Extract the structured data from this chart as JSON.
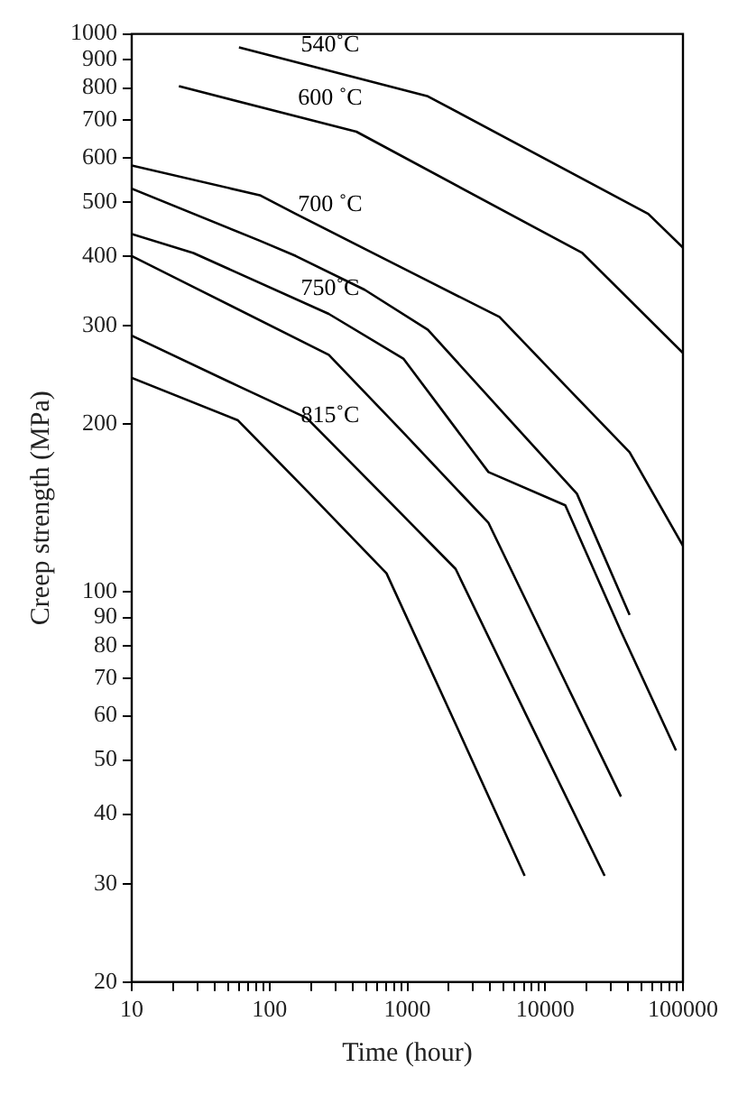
{
  "chart_data": {
    "type": "line",
    "xlabel": "Time (hour)",
    "ylabel": "Creep strength (MPa)",
    "log": "xy",
    "marker": "none",
    "xlim": [
      10,
      100000
    ],
    "ylim": [
      20,
      1000
    ],
    "xticks": [
      10,
      {
        "value": 20,
        "label": null
      },
      {
        "value": 30,
        "label": null
      },
      {
        "value": 40,
        "label": null
      },
      {
        "value": 50,
        "label": null
      },
      {
        "value": 60,
        "label": null
      },
      {
        "value": 70,
        "label": null
      },
      {
        "value": 80,
        "label": null
      },
      {
        "value": 90,
        "label": null
      },
      100,
      {
        "value": 200,
        "label": null
      },
      {
        "value": 300,
        "label": null
      },
      {
        "value": 400,
        "label": null
      },
      {
        "value": 500,
        "label": null
      },
      {
        "value": 600,
        "label": null
      },
      {
        "value": 700,
        "label": null
      },
      {
        "value": 800,
        "label": null
      },
      {
        "value": 900,
        "label": null
      },
      1000,
      {
        "value": 2000,
        "label": null
      },
      {
        "value": 3000,
        "label": null
      },
      {
        "value": 4000,
        "label": null
      },
      {
        "value": 5000,
        "label": null
      },
      {
        "value": 6000,
        "label": null
      },
      {
        "value": 7000,
        "label": null
      },
      {
        "value": 8000,
        "label": null
      },
      {
        "value": 9000,
        "label": null
      },
      10000,
      {
        "value": 20000,
        "label": null
      },
      {
        "value": 30000,
        "label": null
      },
      {
        "value": 40000,
        "label": null
      },
      {
        "value": 50000,
        "label": null
      },
      {
        "value": 60000,
        "label": null
      },
      {
        "value": 70000,
        "label": null
      },
      {
        "value": 80000,
        "label": null
      },
      {
        "value": 90000,
        "label": null
      },
      100000
    ],
    "yticks": [
      20,
      30,
      40,
      50,
      60,
      70,
      80,
      90,
      100,
      200,
      300,
      400,
      500,
      600,
      700,
      800,
      900,
      1000
    ],
    "series": [
      {
        "name": "540˚C",
        "color": "#000000",
        "x": [
          60,
          1410,
          56000,
          100000
        ],
        "values": [
          946,
          773,
          476,
          414
        ]
      },
      {
        "name": "600 ˚C",
        "color": "#000000",
        "x": [
          22,
          427,
          18600,
          100000
        ],
        "values": [
          806,
          668,
          405,
          268
        ]
      },
      {
        "name": "700 ˚C",
        "color": "#000000",
        "x": [
          10,
          85,
          155,
          490,
          1410,
          4660,
          17000,
          41000,
          100000
        ],
        "values": [
          581,
          514,
          476,
          412,
          361,
          311,
          223,
          178,
          121
        ]
      },
      {
        "color": "#000000",
        "x": [
          10,
          85,
          155,
          490,
          1410,
          4660,
          17000,
          41000
        ],
        "values": [
          528,
          426,
          400,
          348,
          295,
          213,
          150,
          91
        ]
      },
      {
        "name": "750˚C",
        "color": "#000000",
        "x": [
          10,
          28,
          269,
          935,
          3880,
          14000,
          35500,
          89000
        ],
        "values": [
          438,
          405,
          315,
          262,
          164,
          143,
          85,
          52
        ]
      },
      {
        "color": "#000000",
        "x": [
          10,
          28,
          269,
          935,
          3880,
          14000,
          35500
        ],
        "values": [
          400,
          352,
          266,
          193,
          133,
          69,
          43
        ]
      },
      {
        "name": "815˚C",
        "color": "#000000",
        "x": [
          10,
          59,
          186,
          706,
          2240,
          7100,
          27000
        ],
        "values": [
          288,
          234,
          205,
          147,
          110,
          61,
          31
        ]
      },
      {
        "color": "#000000",
        "x": [
          10,
          59,
          186,
          706,
          2240,
          7100
        ],
        "values": [
          242,
          203,
          152,
          108,
          58,
          31
        ]
      }
    ]
  }
}
